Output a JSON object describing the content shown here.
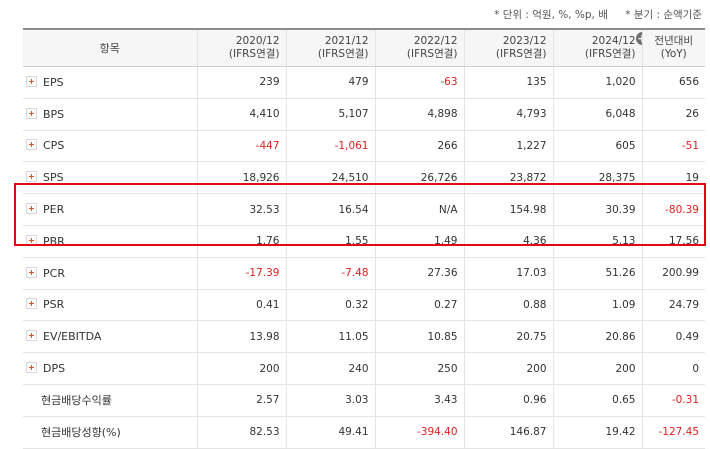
{
  "units": {
    "unit_note": "* 단위 : 억원, %, %p, 배",
    "quarter_note": "* 분기 : 순액기준"
  },
  "header": {
    "item_label": "항목",
    "columns": [
      {
        "period": "2020/12",
        "basis": "(IFRS연결)"
      },
      {
        "period": "2021/12",
        "basis": "(IFRS연결)"
      },
      {
        "period": "2022/12",
        "basis": "(IFRS연결)"
      },
      {
        "period": "2023/12",
        "basis": "(IFRS연결)"
      },
      {
        "period": "2024/12",
        "basis": "(IFRS연결)"
      }
    ],
    "expand_icon": "plus-circle-icon",
    "yoy_label": "전년대비",
    "yoy_sub": "(YoY)"
  },
  "rows": [
    {
      "label": "EPS",
      "expandable": true,
      "values": [
        "239",
        "479",
        "-63",
        "135",
        "1,020"
      ],
      "yoy": "656"
    },
    {
      "label": "BPS",
      "expandable": true,
      "values": [
        "4,410",
        "5,107",
        "4,898",
        "4,793",
        "6,048"
      ],
      "yoy": "26"
    },
    {
      "label": "CPS",
      "expandable": true,
      "values": [
        "-447",
        "-1,061",
        "266",
        "1,227",
        "605"
      ],
      "yoy": "-51"
    },
    {
      "label": "SPS",
      "expandable": true,
      "values": [
        "18,926",
        "24,510",
        "26,726",
        "23,872",
        "28,375"
      ],
      "yoy": "19"
    },
    {
      "label": "PER",
      "expandable": true,
      "values": [
        "32.53",
        "16.54",
        "N/A",
        "154.98",
        "30.39"
      ],
      "yoy": "-80.39"
    },
    {
      "label": "PBR",
      "expandable": true,
      "values": [
        "1.76",
        "1.55",
        "1.49",
        "4.36",
        "5.13"
      ],
      "yoy": "17.56"
    },
    {
      "label": "PCR",
      "expandable": true,
      "values": [
        "-17.39",
        "-7.48",
        "27.36",
        "17.03",
        "51.26"
      ],
      "yoy": "200.99"
    },
    {
      "label": "PSR",
      "expandable": true,
      "values": [
        "0.41",
        "0.32",
        "0.27",
        "0.88",
        "1.09"
      ],
      "yoy": "24.79"
    },
    {
      "label": "EV/EBITDA",
      "expandable": true,
      "values": [
        "13.98",
        "11.05",
        "10.85",
        "20.75",
        "20.86"
      ],
      "yoy": "0.49"
    },
    {
      "label": "DPS",
      "expandable": true,
      "values": [
        "200",
        "240",
        "250",
        "200",
        "200"
      ],
      "yoy": "0"
    },
    {
      "label": "현금배당수익률",
      "expandable": false,
      "values": [
        "2.57",
        "3.03",
        "3.43",
        "0.96",
        "0.65"
      ],
      "yoy": "-0.31"
    },
    {
      "label": "현금배당성향(%)",
      "expandable": false,
      "values": [
        "82.53",
        "49.41",
        "-394.40",
        "146.87",
        "19.42"
      ],
      "yoy": "-127.45"
    }
  ],
  "colors": {
    "negative": "#e02020",
    "highlight_border": "#e30613",
    "expand_icon": "#e8541e"
  }
}
